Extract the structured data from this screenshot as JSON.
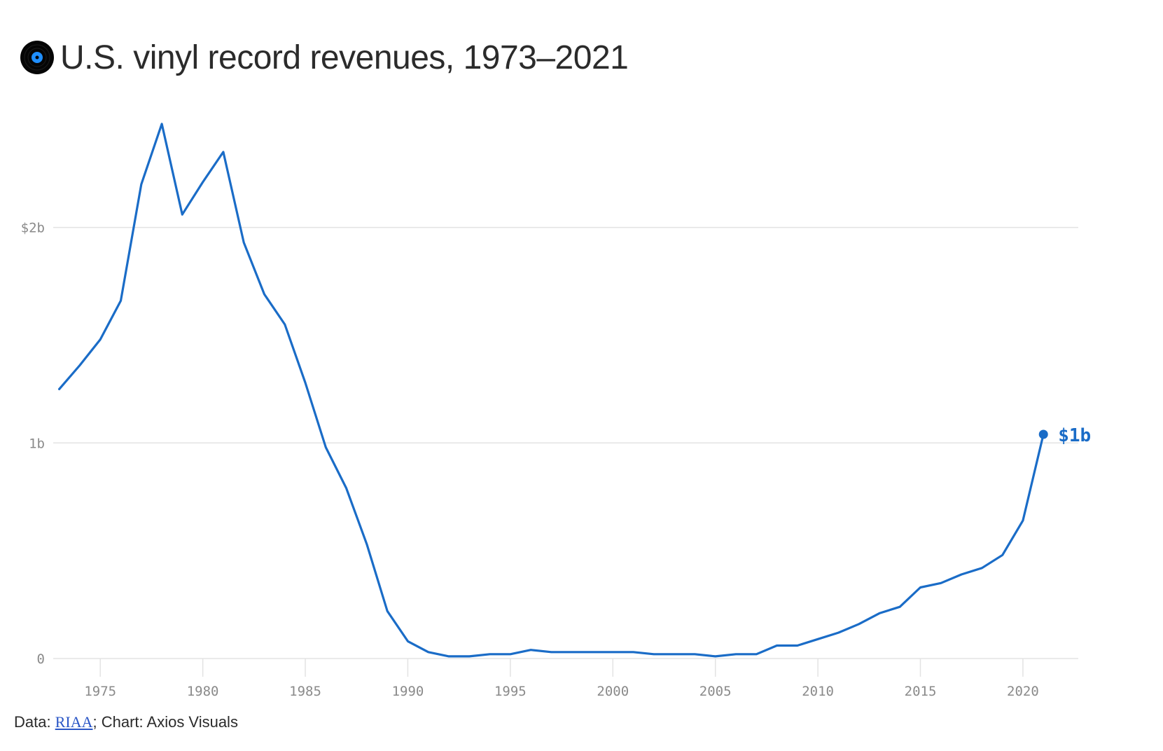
{
  "title": "U.S. vinyl record revenues, 1973–2021",
  "icon": "vinyl-record-icon",
  "colors": {
    "line": "#1a6cc7",
    "grid": "#e3e3e3",
    "axis_text": "#8a8a8a",
    "title": "#2b2b2b",
    "link": "#2a56c6"
  },
  "footer": {
    "data_prefix": "Data: ",
    "source_link": "RIAA",
    "chart_credit": "; Chart: Axios Visuals"
  },
  "chart_data": {
    "type": "line",
    "title": "U.S. vinyl record revenues, 1973–2021",
    "xlabel": "",
    "ylabel": "",
    "xlim": [
      1972.5,
      2022.7
    ],
    "ylim": [
      0,
      2.6
    ],
    "grid": true,
    "x_ticks": [
      1975,
      1980,
      1985,
      1990,
      1995,
      2000,
      2005,
      2010,
      2015,
      2020
    ],
    "x_tick_labels": [
      "1975",
      "1980",
      "1985",
      "1990",
      "1995",
      "2000",
      "2005",
      "2010",
      "2015",
      "2020"
    ],
    "y_ticks": [
      0,
      1,
      2
    ],
    "y_tick_labels": [
      "0",
      "1b",
      "$2b"
    ],
    "end_label": "$1b",
    "series": [
      {
        "x": [
          1973,
          1974,
          1975,
          1976,
          1977,
          1978,
          1979,
          1980,
          1981,
          1982,
          1983,
          1984,
          1985,
          1986,
          1987,
          1988,
          1989,
          1990,
          1991,
          1992,
          1993,
          1994,
          1995,
          1996,
          1997,
          1998,
          1999,
          2000,
          2001,
          2002,
          2003,
          2004,
          2005,
          2006,
          2007,
          2008,
          2009,
          2010,
          2011,
          2012,
          2013,
          2014,
          2015,
          2016,
          2017,
          2018,
          2019,
          2020,
          2021
        ],
        "values": [
          1.25,
          1.36,
          1.48,
          1.66,
          2.2,
          2.48,
          2.06,
          2.21,
          2.35,
          1.93,
          1.69,
          1.55,
          1.28,
          0.98,
          0.79,
          0.53,
          0.22,
          0.08,
          0.03,
          0.01,
          0.01,
          0.02,
          0.02,
          0.04,
          0.03,
          0.03,
          0.03,
          0.03,
          0.03,
          0.02,
          0.02,
          0.02,
          0.01,
          0.02,
          0.02,
          0.06,
          0.06,
          0.09,
          0.12,
          0.16,
          0.21,
          0.24,
          0.33,
          0.35,
          0.39,
          0.42,
          0.48,
          0.64,
          1.04
        ]
      }
    ]
  }
}
